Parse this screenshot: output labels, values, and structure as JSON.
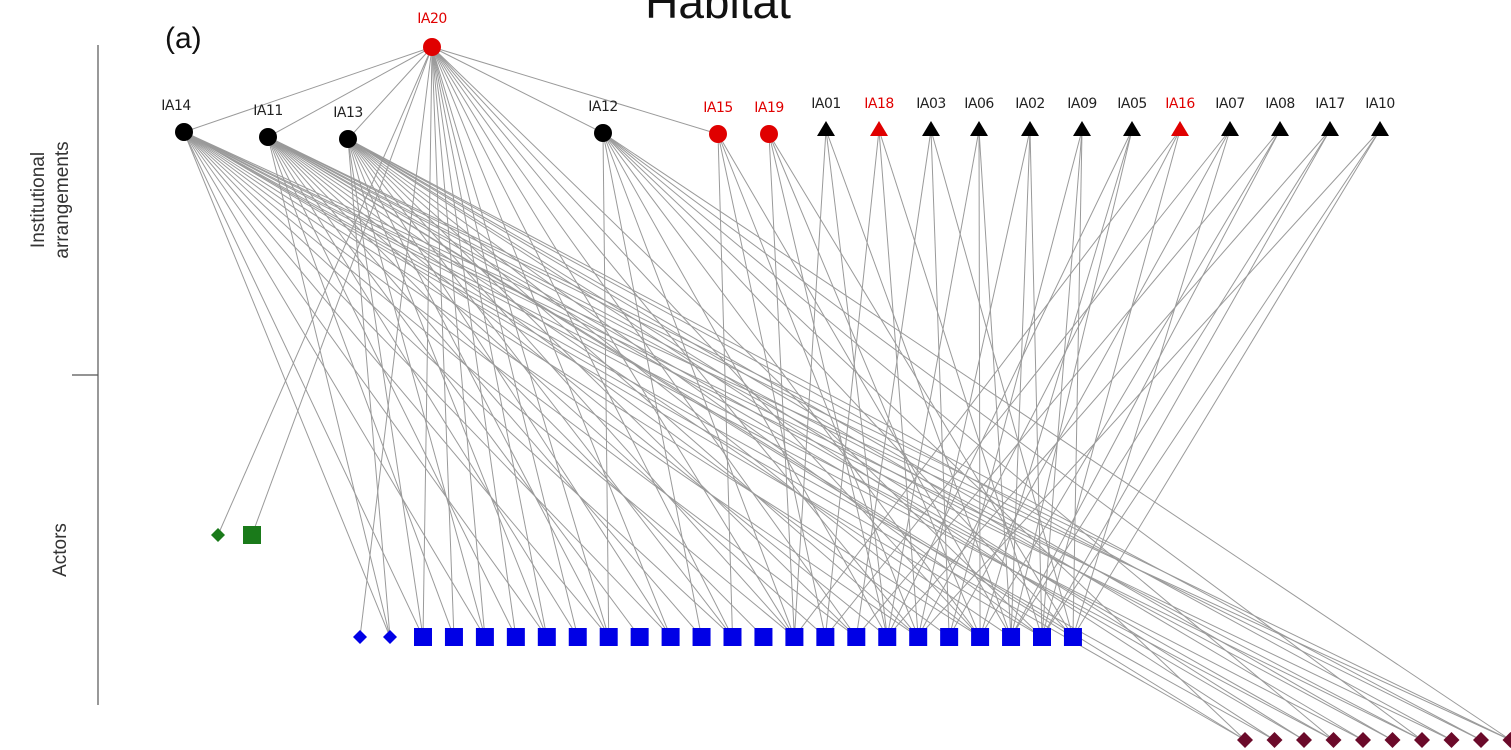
{
  "title": "Habitat",
  "panel_label": "(a)",
  "side_labels": {
    "upper": [
      "Institutional",
      "arrangements"
    ],
    "lower": "Actors"
  },
  "nodes": [
    {
      "label": "IA20"
    },
    {
      "label": "IA14"
    },
    {
      "label": "IA11"
    },
    {
      "label": "IA13"
    },
    {
      "label": "IA12"
    },
    {
      "label": "IA15"
    },
    {
      "label": "IA19"
    },
    {
      "label": "IA01"
    },
    {
      "label": "IA18"
    },
    {
      "label": "IA03"
    },
    {
      "label": "IA06"
    },
    {
      "label": "IA02"
    },
    {
      "label": "IA09"
    },
    {
      "label": "IA05"
    },
    {
      "label": "IA16"
    },
    {
      "label": "IA07"
    },
    {
      "label": "IA08"
    },
    {
      "label": "IA17"
    },
    {
      "label": "IA10"
    }
  ]
}
